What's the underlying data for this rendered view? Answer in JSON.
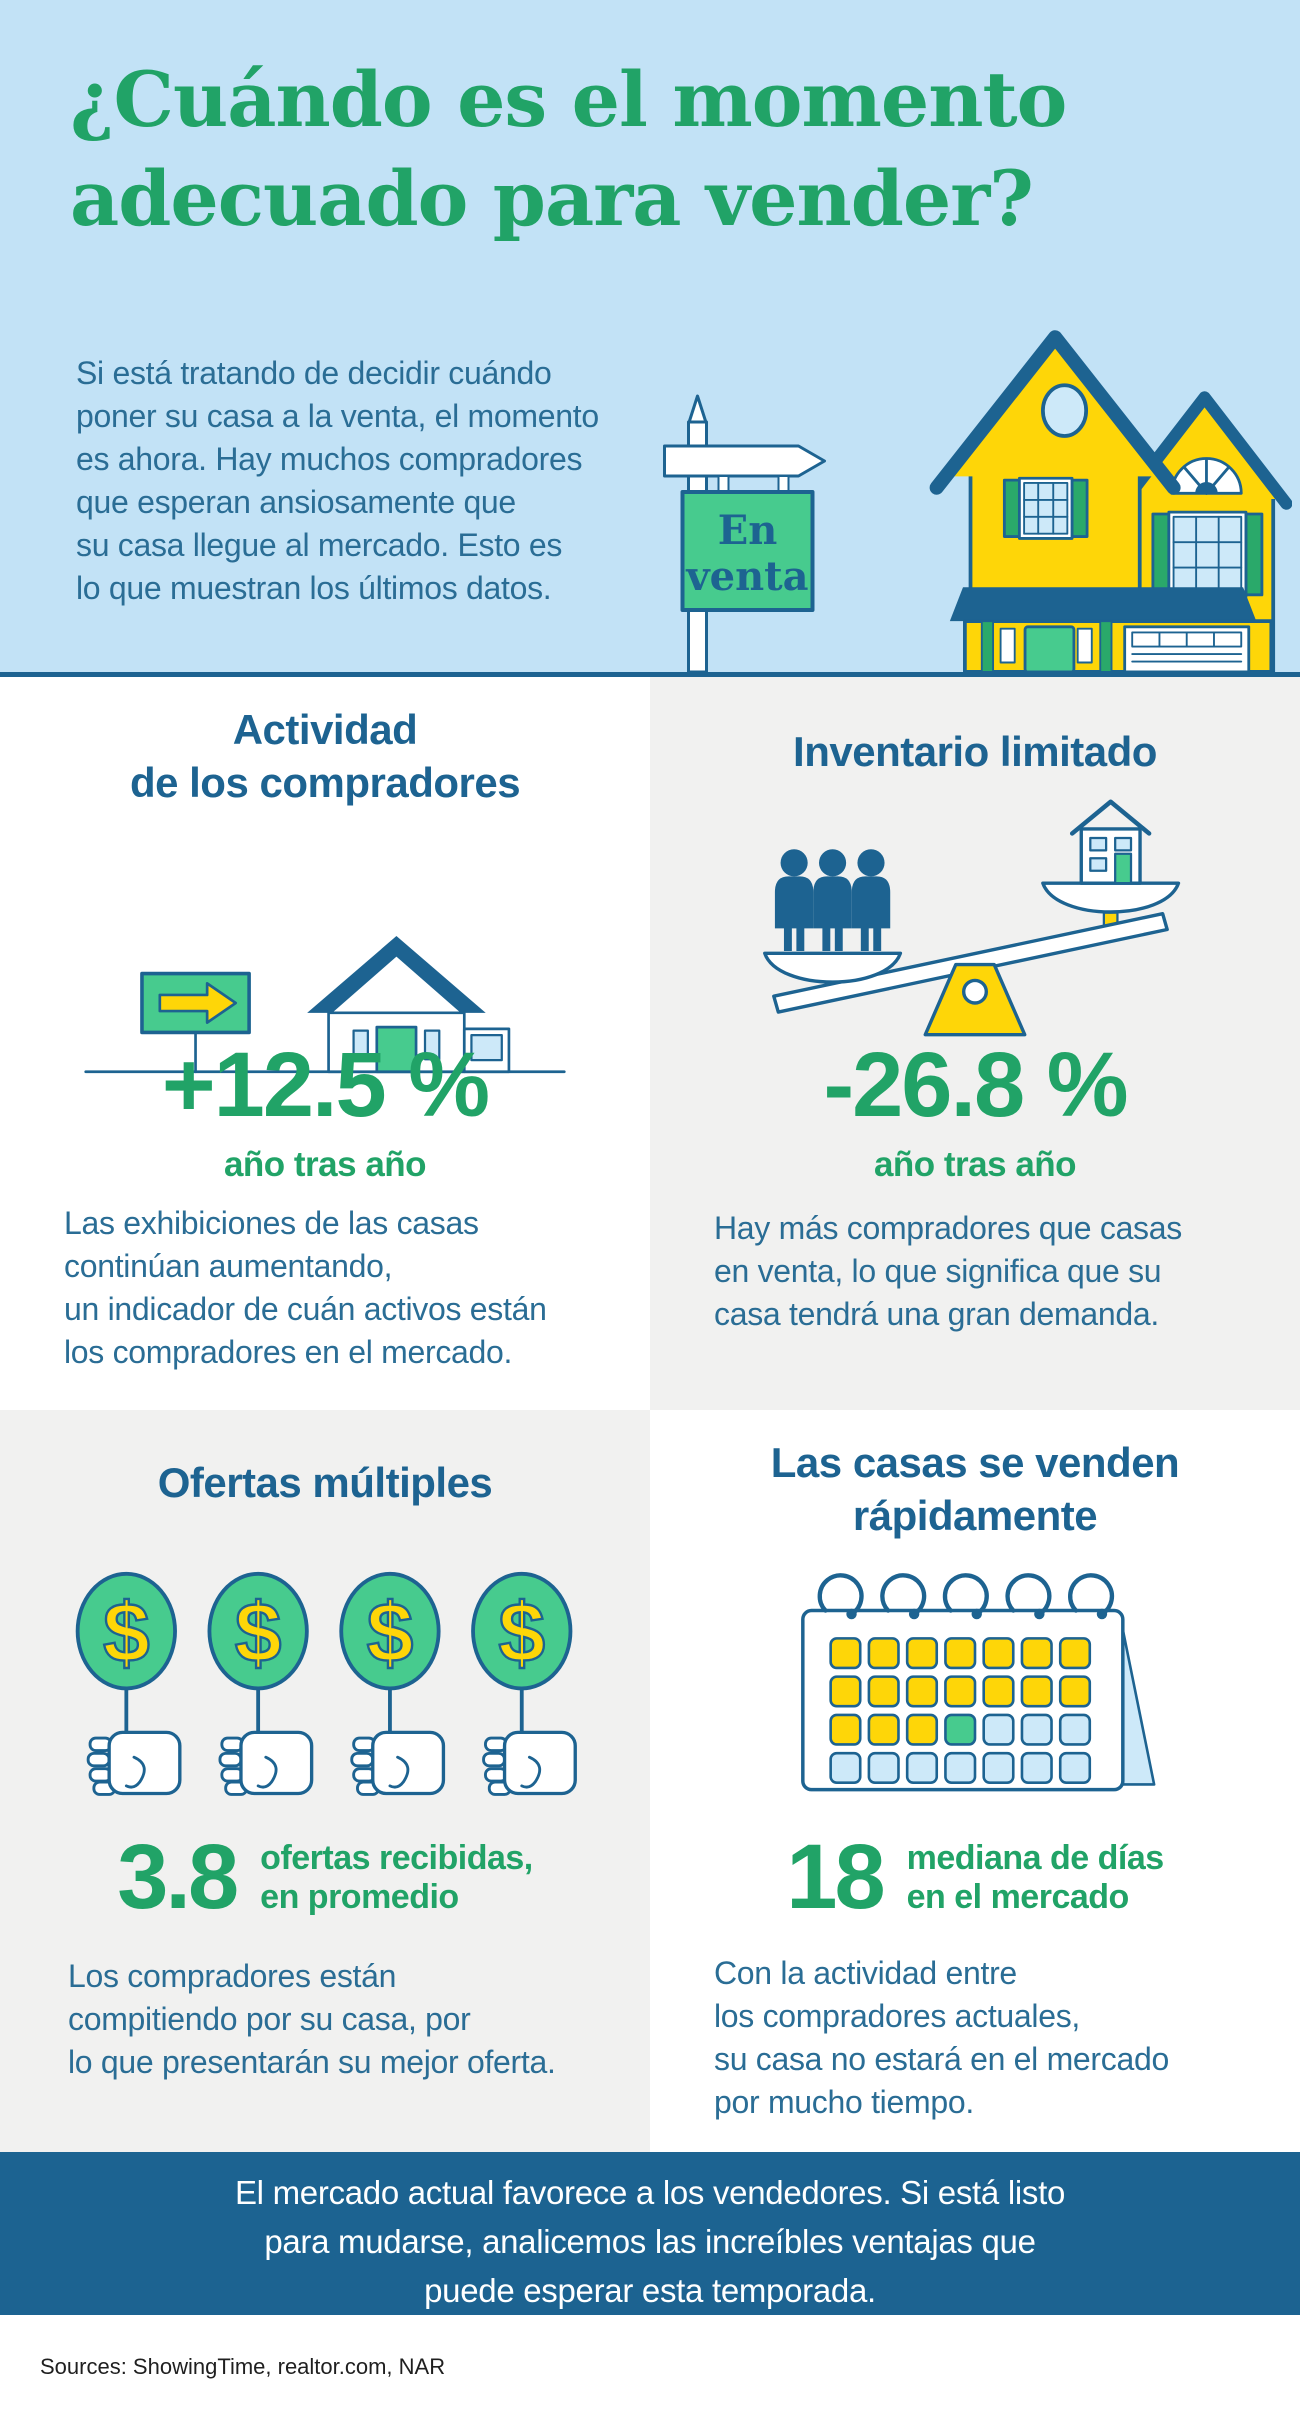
{
  "colors": {
    "bg_blue": "#c2e2f6",
    "green": "#21a367",
    "green_fill": "#47cb8e",
    "green_dark": "#2aa96a",
    "yellow": "#fed608",
    "blue_dark": "#1d6391",
    "blue_body": "#2a6d95",
    "band": "#1c6391",
    "gray_panel": "#f1f1f0",
    "pane": "#cde9f9",
    "footer_text": "#1f1f1f"
  },
  "hero": {
    "title_lines": [
      "¿Cuándo es el momento",
      "adecuado para vender?"
    ],
    "intro_lines": [
      "Si está tratando de decidir cuándo",
      "poner su casa a la venta, el momento",
      "es ahora. Hay muchos compradores",
      "que esperan ansiosamente que",
      "su casa llegue al mercado. Esto es",
      "lo que muestran los últimos datos."
    ],
    "sign": {
      "line1": "En",
      "line2": "venta"
    }
  },
  "quadrants": {
    "buyer_activity": {
      "heading_lines": [
        "Actividad",
        "de los compradores"
      ],
      "stat": "+12.5 %",
      "stat_sub": "año tras año",
      "body_lines": [
        "Las exhibiciones de las casas",
        "continúan aumentando,",
        "un indicador de cuán activos están",
        "los compradores en el mercado."
      ]
    },
    "limited_inventory": {
      "heading": "Inventario limitado",
      "stat": "-26.8 %",
      "stat_sub": "año tras año",
      "body_lines": [
        "Hay más compradores que casas",
        "en venta, lo que significa que su",
        "casa tendrá una gran demanda."
      ]
    },
    "multiple_offers": {
      "heading": "Ofertas múltiples",
      "stat": "3.8",
      "stat_label_lines": [
        "ofertas recibidas,",
        "en promedio"
      ],
      "body_lines": [
        "Los compradores están",
        "compitiendo por su casa, por",
        "lo que presentarán su mejor oferta."
      ]
    },
    "fast_sales": {
      "heading_lines": [
        "Las casas se venden",
        "rápidamente"
      ],
      "stat": "18",
      "stat_label_lines": [
        "mediana de días",
        "en el mercado"
      ],
      "body_lines": [
        "Con la actividad entre",
        "los compradores actuales,",
        "su casa no estará en el mercado",
        "por mucho tiempo."
      ]
    }
  },
  "banner": {
    "lines": [
      "El mercado actual favorece a los vendedores. Si está listo",
      "para mudarse, analicemos las increíbles ventajas que",
      "puede esperar esta temporada."
    ]
  },
  "footer": {
    "sources": "Sources: ShowingTime, realtor.com, NAR"
  },
  "icons": {
    "dollar_symbol": "$",
    "offer_paddles": 4,
    "inventory_people": 3,
    "calendar": {
      "cols": 7,
      "rows": 4,
      "yellow_days": 17,
      "highlight_day": 18
    }
  }
}
